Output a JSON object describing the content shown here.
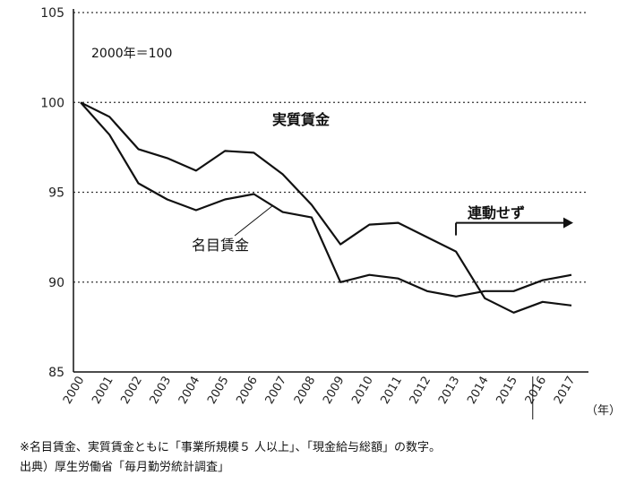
{
  "chart_data": {
    "type": "line",
    "x": [
      "2000",
      "2001",
      "2002",
      "2003",
      "2004",
      "2005",
      "2006",
      "2007",
      "2008",
      "2009",
      "2010",
      "2011",
      "2012",
      "2013",
      "2014",
      "2015",
      "2016",
      "2017"
    ],
    "ylim": [
      85,
      105
    ],
    "yticks": [
      85,
      90,
      95,
      100,
      105
    ],
    "grid": "horizontal dotted",
    "xunit": "（年）",
    "base_note": "2000年＝100",
    "series": [
      {
        "name": "実質賃金",
        "color": "#111111",
        "values": [
          100,
          99.2,
          97.4,
          96.9,
          96.2,
          97.3,
          97.2,
          96.0,
          94.3,
          92.1,
          93.2,
          93.3,
          92.5,
          91.7,
          89.1,
          88.3,
          88.9,
          88.7
        ]
      },
      {
        "name": "名目賃金",
        "color": "#111111",
        "values": [
          100,
          98.2,
          95.5,
          94.6,
          94.0,
          94.6,
          94.9,
          93.9,
          93.6,
          90.0,
          90.4,
          90.2,
          89.5,
          89.2,
          89.5,
          89.5,
          90.1,
          90.4
        ]
      }
    ],
    "annotation": {
      "text": "連動せず",
      "from_x": "2013",
      "to_x": "2017",
      "y": 93.3
    }
  },
  "footnotes": [
    "※名目賃金、実質賃金ともに「事業所規模５ 人以上」、「現金給与総額」の数字。",
    "出典）厚生労働省「毎月勤労統計調査」"
  ]
}
